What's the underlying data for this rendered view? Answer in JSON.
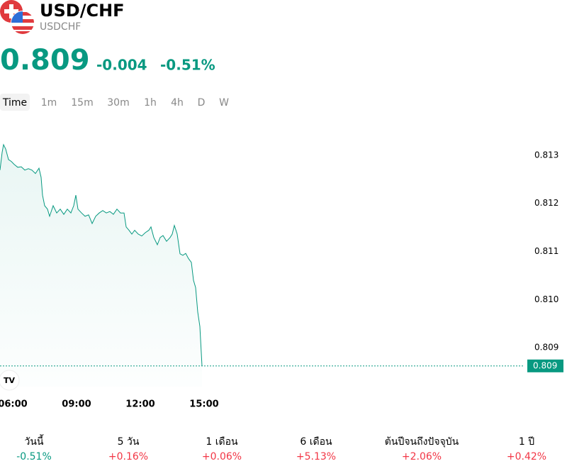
{
  "header": {
    "title": "USD/CHF",
    "symbol": "USDCHF"
  },
  "quote": {
    "price": "0.809",
    "change": "-0.004",
    "change_percent": "-0.51%"
  },
  "timeframes": [
    "Time",
    "1m",
    "15m",
    "30m",
    "1h",
    "4h",
    "D",
    "W"
  ],
  "chart": {
    "type": "line",
    "color": "#089981",
    "x": [
      324,
      330,
      334,
      340,
      348,
      356,
      364,
      374,
      384,
      394,
      404,
      414,
      424,
      434,
      440,
      444,
      450,
      458,
      464,
      474,
      484,
      494,
      504,
      514,
      524,
      532,
      538,
      544,
      554,
      564,
      574,
      584,
      594,
      604,
      614,
      624,
      634,
      644,
      654,
      664,
      674,
      680,
      688,
      696,
      704,
      714,
      724,
      734,
      744,
      750,
      758,
      768,
      776,
      784,
      794,
      804,
      810,
      816,
      824,
      832,
      840,
      848,
      856,
      864,
      870,
      876,
      882,
      888,
      894
    ],
    "values": [
      0.81269,
      0.81306,
      0.81322,
      0.81313,
      0.81291,
      0.81287,
      0.81281,
      0.81275,
      0.81276,
      0.81269,
      0.81272,
      0.81269,
      0.81262,
      0.81273,
      0.81254,
      0.81217,
      0.81195,
      0.81188,
      0.81173,
      0.81195,
      0.8118,
      0.81188,
      0.81177,
      0.81188,
      0.8118,
      0.81195,
      0.81217,
      0.81188,
      0.8118,
      0.81173,
      0.81176,
      0.81158,
      0.81173,
      0.8118,
      0.81185,
      0.8118,
      0.81183,
      0.81177,
      0.81188,
      0.8118,
      0.8118,
      0.81151,
      0.81144,
      0.81136,
      0.81144,
      0.81136,
      0.81132,
      0.81139,
      0.81144,
      0.81151,
      0.81129,
      0.81114,
      0.81129,
      0.81133,
      0.81121,
      0.81129,
      0.81136,
      0.81154,
      0.81136,
      0.81095,
      0.81092,
      0.81096,
      0.81085,
      0.81077,
      0.8104,
      0.81025,
      0.80974,
      0.80944,
      0.80862
    ],
    "xlim": [
      324,
      1804
    ],
    "ylim": [
      0.80819,
      0.81372
    ],
    "xticks": [
      {
        "value": 360,
        "label": "06:00"
      },
      {
        "value": 540,
        "label": "09:00"
      },
      {
        "value": 720,
        "label": "12:00"
      },
      {
        "value": 900,
        "label": "15:00"
      }
    ],
    "yticks": [
      0.813,
      0.812,
      0.811,
      {
        "value": 0.81,
        "label": "0.810"
      },
      0.809
    ],
    "last_price": {
      "value": 0.80862,
      "label": "0.809"
    }
  },
  "performance": [
    {
      "label": "วันนี้",
      "value": "-0.51%"
    },
    {
      "label": "5 วัน",
      "value": "+0.16%"
    },
    {
      "label": "1 เดือน",
      "value": "+0.06%"
    },
    {
      "label": "6 เดือน",
      "value": "+5.13%"
    },
    {
      "label": "ต้นปีจนถึงปัจจุบัน",
      "value": "+2.06%"
    },
    {
      "label": "1 ปี",
      "value": "+0.42%"
    }
  ]
}
